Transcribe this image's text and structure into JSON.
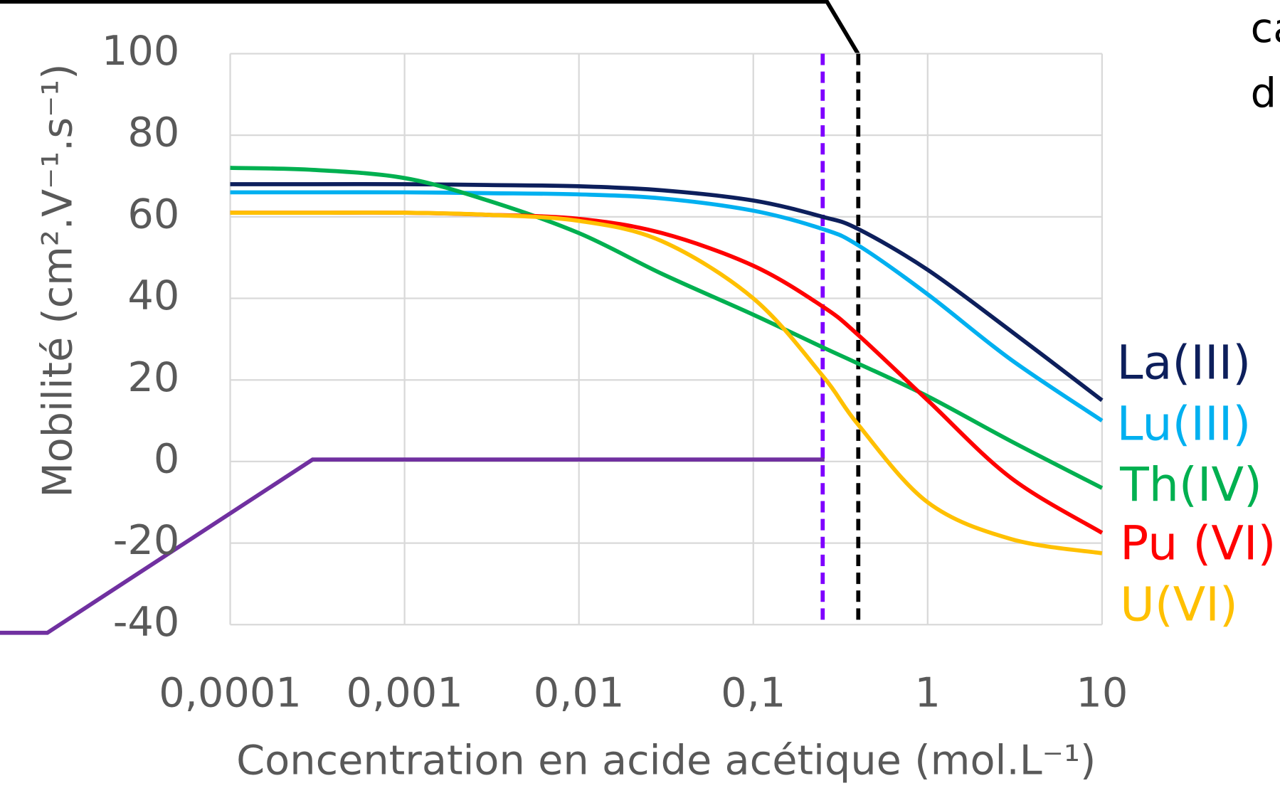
{
  "chart_data": {
    "type": "line",
    "xlabel": "Concentration en acide acétique (mol.L⁻¹)",
    "ylabel": "Mobilité  (cm².V⁻¹.s⁻¹)",
    "annotations": [
      "ca",
      "d"
    ],
    "log_x": true,
    "grid": true,
    "x": [
      0.0001,
      0.0003,
      0.001,
      0.003,
      0.01,
      0.03,
      0.1,
      0.25,
      0.4,
      1,
      3,
      10
    ],
    "series": [
      {
        "name": "La(III)",
        "color": "#0d1f5c",
        "values": [
          68,
          68,
          68,
          67.8,
          67.5,
          66.5,
          64,
          60,
          57,
          47,
          32,
          15
        ]
      },
      {
        "name": "Lu(III)",
        "color": "#00b0f0",
        "values": [
          66,
          66,
          66,
          65.8,
          65.5,
          64.5,
          61.5,
          57,
          53,
          41,
          25,
          10
        ]
      },
      {
        "name": "Th(IV)",
        "color": "#00b050",
        "values": [
          72,
          71.5,
          69.5,
          64,
          56,
          46,
          36,
          28,
          24,
          16,
          5,
          -6.5
        ]
      },
      {
        "name": "Pu (VI)",
        "color": "#ff0000",
        "values": [
          61,
          61,
          61,
          60.5,
          59.5,
          56,
          48,
          38,
          31,
          15,
          -4,
          -17.5
        ]
      },
      {
        "name": "U(VI)",
        "color": "#ffc000",
        "values": [
          61,
          61,
          61,
          60.5,
          59,
          54,
          40,
          21,
          9,
          -10,
          -19,
          -22.5
        ]
      }
    ],
    "reference_lines": [
      {
        "x": 0.25,
        "color": "#7f00ff"
      },
      {
        "x": 0.4,
        "color": "#000000"
      }
    ],
    "xlim": [
      0.0001,
      10
    ],
    "xticks": [
      {
        "value": 0.0001,
        "label": "0,0001"
      },
      {
        "value": 0.001,
        "label": "0,001"
      },
      {
        "value": 0.01,
        "label": "0,01"
      },
      {
        "value": 0.1,
        "label": "0,1"
      },
      1,
      10
    ],
    "ylim": [
      -40,
      100
    ],
    "yticks": [
      -40,
      -20,
      0,
      20,
      40,
      60,
      80,
      100
    ]
  }
}
